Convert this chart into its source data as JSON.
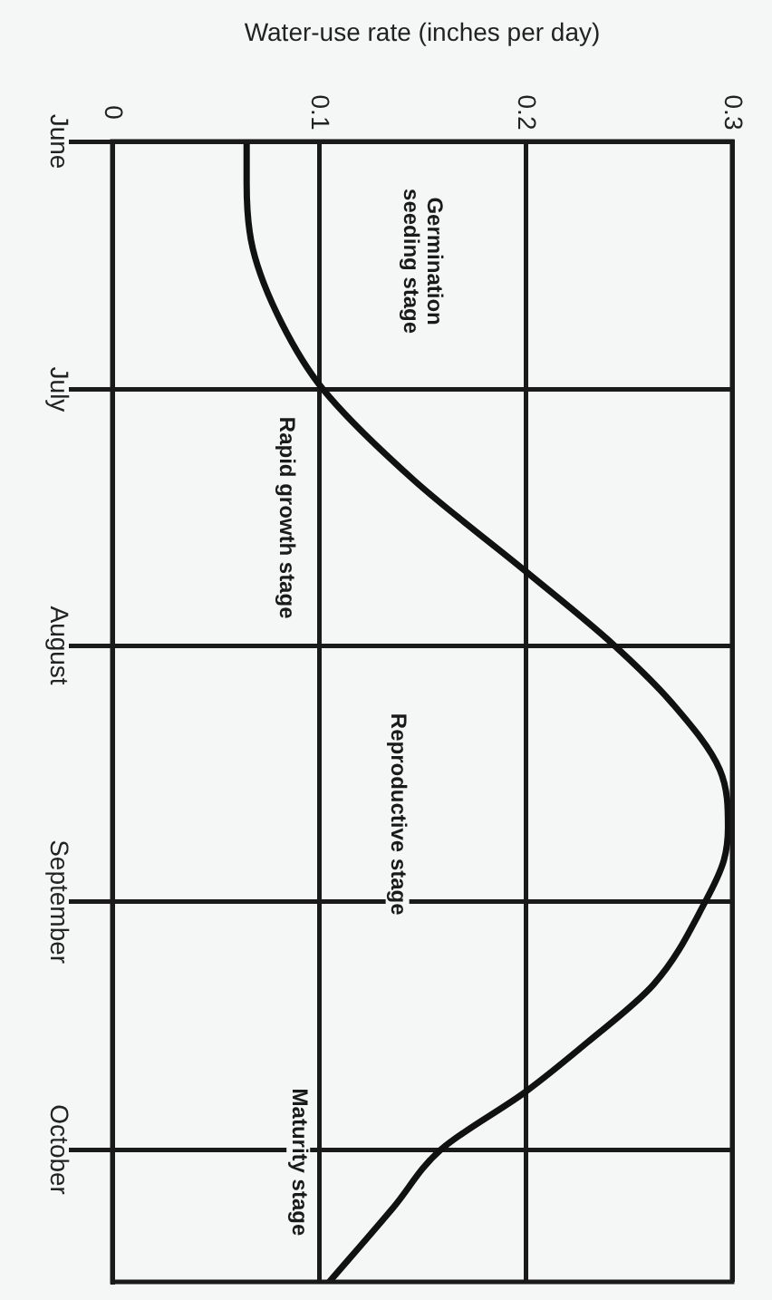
{
  "chart_data": {
    "type": "line",
    "orientation": "horizontal",
    "xlabel": "Water-use rate (inches per day)",
    "x": [
      "--06-01",
      "--06-06",
      "--06-14",
      "--06-23",
      "--07-01",
      "--07-12",
      "--07-23",
      "--08-01",
      "--08-08",
      "--08-16",
      "--08-23",
      "--08-27",
      "--09-01",
      "--09-11",
      "--09-18",
      "--09-24",
      "--10-01",
      "--10-08",
      "--10-17"
    ],
    "values": [
      0.065,
      0.065,
      0.068,
      0.082,
      0.102,
      0.146,
      0.2,
      0.243,
      0.271,
      0.294,
      0.298,
      0.296,
      0.287,
      0.262,
      0.23,
      0.2,
      0.159,
      0.136,
      0.105
    ],
    "color": "#111111",
    "marker": "none",
    "line_style": "solid",
    "grid": true,
    "xlim": [
      0,
      0.3
    ],
    "xticks": [
      0,
      0.1,
      0.2,
      0.3
    ],
    "ylim": [
      "--10-17",
      "--06-01"
    ],
    "yticks": [
      {
        "value": "--06-01",
        "label": "June"
      },
      {
        "value": "--07-01",
        "label": "July"
      },
      {
        "value": "--08-01",
        "label": "August"
      },
      {
        "value": "--09-01",
        "label": "September"
      },
      {
        "value": "--10-01",
        "label": "October"
      }
    ],
    "annotations": [
      "Germination\nseeding stage",
      "Rapid growth stage",
      "Reproductive stage",
      "Maturity stage"
    ]
  }
}
